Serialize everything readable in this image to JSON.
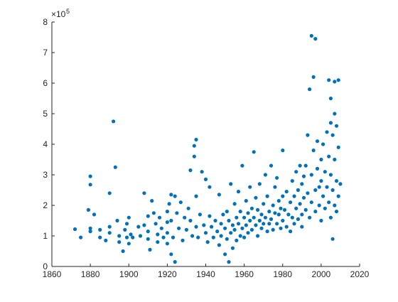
{
  "chart_data": {
    "type": "scatter",
    "title": "",
    "xlabel": "",
    "ylabel": "",
    "xlim": [
      1860,
      2020
    ],
    "ylim": [
      0,
      800000
    ],
    "x_ticks": [
      1860,
      1880,
      1900,
      1920,
      1940,
      1960,
      1980,
      2000,
      2020
    ],
    "y_ticks": [
      0,
      100000,
      200000,
      300000,
      400000,
      500000,
      600000,
      700000,
      800000
    ],
    "y_tick_labels": [
      "0",
      "1",
      "2",
      "3",
      "4",
      "5",
      "6",
      "7",
      "8"
    ],
    "y_exponent_base": "×10",
    "y_exponent_power": "5",
    "grid": false,
    "legend": "none",
    "marker_color": "#0072BD",
    "series": [
      {
        "points": [
          [
            1872,
            122000
          ],
          [
            1875,
            95000
          ],
          [
            1879,
            185000
          ],
          [
            1880,
            295000
          ],
          [
            1880,
            268000
          ],
          [
            1880,
            125000
          ],
          [
            1880,
            115000
          ],
          [
            1882,
            170000
          ],
          [
            1885,
            120000
          ],
          [
            1885,
            95000
          ],
          [
            1888,
            85000
          ],
          [
            1890,
            240000
          ],
          [
            1890,
            130000
          ],
          [
            1890,
            110000
          ],
          [
            1892,
            475000
          ],
          [
            1893,
            325000
          ],
          [
            1894,
            150000
          ],
          [
            1895,
            100000
          ],
          [
            1895,
            80000
          ],
          [
            1897,
            50000
          ],
          [
            1898,
            120000
          ],
          [
            1899,
            140000
          ],
          [
            1899,
            95000
          ],
          [
            1900,
            160000
          ],
          [
            1900,
            75000
          ],
          [
            1901,
            105000
          ],
          [
            1902,
            95000
          ],
          [
            1905,
            130000
          ],
          [
            1906,
            100000
          ],
          [
            1908,
            240000
          ],
          [
            1908,
            135000
          ],
          [
            1910,
            165000
          ],
          [
            1910,
            115000
          ],
          [
            1910,
            90000
          ],
          [
            1911,
            55000
          ],
          [
            1912,
            215000
          ],
          [
            1913,
            175000
          ],
          [
            1914,
            140000
          ],
          [
            1915,
            105000
          ],
          [
            1915,
            80000
          ],
          [
            1916,
            160000
          ],
          [
            1917,
            125000
          ],
          [
            1918,
            95000
          ],
          [
            1920,
            180000
          ],
          [
            1920,
            145000
          ],
          [
            1920,
            110000
          ],
          [
            1920,
            75000
          ],
          [
            1921,
            205000
          ],
          [
            1922,
            235000
          ],
          [
            1922,
            150000
          ],
          [
            1922,
            40000
          ],
          [
            1923,
            95000
          ],
          [
            1924,
            230000
          ],
          [
            1924,
            15000
          ],
          [
            1925,
            175000
          ],
          [
            1926,
            125000
          ],
          [
            1927,
            210000
          ],
          [
            1928,
            85000
          ],
          [
            1929,
            160000
          ],
          [
            1930,
            120000
          ],
          [
            1931,
            190000
          ],
          [
            1932,
            150000
          ],
          [
            1932,
            315000
          ],
          [
            1933,
            100000
          ],
          [
            1934,
            360000
          ],
          [
            1934,
            395000
          ],
          [
            1935,
            415000
          ],
          [
            1935,
            230000
          ],
          [
            1935,
            130000
          ],
          [
            1936,
            95000
          ],
          [
            1937,
            170000
          ],
          [
            1938,
            310000
          ],
          [
            1939,
            135000
          ],
          [
            1940,
            285000
          ],
          [
            1940,
            110000
          ],
          [
            1941,
            80000
          ],
          [
            1942,
            260000
          ],
          [
            1942,
            165000
          ],
          [
            1943,
            130000
          ],
          [
            1944,
            95000
          ],
          [
            1945,
            150000
          ],
          [
            1946,
            115000
          ],
          [
            1947,
            235000
          ],
          [
            1947,
            70000
          ],
          [
            1948,
            140000
          ],
          [
            1948,
            100000
          ],
          [
            1949,
            170000
          ],
          [
            1950,
            125000
          ],
          [
            1950,
            40000
          ],
          [
            1951,
            180000
          ],
          [
            1951,
            90000
          ],
          [
            1952,
            150000
          ],
          [
            1952,
            15000
          ],
          [
            1953,
            110000
          ],
          [
            1953,
            270000
          ],
          [
            1954,
            135000
          ],
          [
            1954,
            60000
          ],
          [
            1955,
            205000
          ],
          [
            1955,
            120000
          ],
          [
            1956,
            160000
          ],
          [
            1956,
            85000
          ],
          [
            1957,
            140000
          ],
          [
            1957,
            245000
          ],
          [
            1958,
            180000
          ],
          [
            1958,
            100000
          ],
          [
            1959,
            125000
          ],
          [
            1959,
            330000
          ],
          [
            1960,
            160000
          ],
          [
            1960,
            95000
          ],
          [
            1961,
            215000
          ],
          [
            1961,
            135000
          ],
          [
            1962,
            175000
          ],
          [
            1962,
            110000
          ],
          [
            1963,
            150000
          ],
          [
            1963,
            260000
          ],
          [
            1964,
            190000
          ],
          [
            1964,
            120000
          ],
          [
            1965,
            375000
          ],
          [
            1965,
            160000
          ],
          [
            1966,
            135000
          ],
          [
            1966,
            225000
          ],
          [
            1967,
            185000
          ],
          [
            1967,
            100000
          ],
          [
            1968,
            150000
          ],
          [
            1968,
            270000
          ],
          [
            1969,
            170000
          ],
          [
            1969,
            125000
          ],
          [
            1970,
            205000
          ],
          [
            1970,
            140000
          ],
          [
            1971,
            300000
          ],
          [
            1971,
            160000
          ],
          [
            1972,
            115000
          ],
          [
            1972,
            230000
          ],
          [
            1973,
            180000
          ],
          [
            1973,
            140000
          ],
          [
            1974,
            330000
          ],
          [
            1974,
            155000
          ],
          [
            1975,
            200000
          ],
          [
            1975,
            120000
          ],
          [
            1976,
            175000
          ],
          [
            1976,
            260000
          ],
          [
            1977,
            140000
          ],
          [
            1977,
            290000
          ],
          [
            1978,
            215000
          ],
          [
            1978,
            170000
          ],
          [
            1979,
            125000
          ],
          [
            1979,
            190000
          ],
          [
            1980,
            380000
          ],
          [
            1980,
            230000
          ],
          [
            1980,
            150000
          ],
          [
            1981,
            185000
          ],
          [
            1982,
            245000
          ],
          [
            1982,
            130000
          ],
          [
            1983,
            170000
          ],
          [
            1984,
            210000
          ],
          [
            1984,
            115000
          ],
          [
            1985,
            280000
          ],
          [
            1985,
            160000
          ],
          [
            1986,
            230000
          ],
          [
            1986,
            140000
          ],
          [
            1987,
            310000
          ],
          [
            1987,
            190000
          ],
          [
            1988,
            250000
          ],
          [
            1988,
            155000
          ],
          [
            1989,
            205000
          ],
          [
            1989,
            330000
          ],
          [
            1990,
            270000
          ],
          [
            1990,
            170000
          ],
          [
            1990,
            130000
          ],
          [
            1991,
            225000
          ],
          [
            1991,
            295000
          ],
          [
            1992,
            185000
          ],
          [
            1992,
            330000
          ],
          [
            1993,
            430000
          ],
          [
            1993,
            240000
          ],
          [
            1994,
            580000
          ],
          [
            1994,
            160000
          ],
          [
            1995,
            755000
          ],
          [
            1995,
            300000
          ],
          [
            1995,
            210000
          ],
          [
            1996,
            620000
          ],
          [
            1996,
            380000
          ],
          [
            1997,
            745000
          ],
          [
            1997,
            250000
          ],
          [
            1997,
            180000
          ],
          [
            1998,
            410000
          ],
          [
            1998,
            320000
          ],
          [
            1999,
            260000
          ],
          [
            1999,
            200000
          ],
          [
            2000,
            350000
          ],
          [
            2000,
            280000
          ],
          [
            2000,
            150000
          ],
          [
            2001,
            400000
          ],
          [
            2001,
            230000
          ],
          [
            2002,
            310000
          ],
          [
            2002,
            190000
          ],
          [
            2003,
            440000
          ],
          [
            2003,
            260000
          ],
          [
            2004,
            610000
          ],
          [
            2004,
            360000
          ],
          [
            2004,
            210000
          ],
          [
            2005,
            550000
          ],
          [
            2005,
            470000
          ],
          [
            2005,
            300000
          ],
          [
            2005,
            160000
          ],
          [
            2006,
            430000
          ],
          [
            2006,
            250000
          ],
          [
            2006,
            90000
          ],
          [
            2007,
            605000
          ],
          [
            2007,
            500000
          ],
          [
            2007,
            350000
          ],
          [
            2007,
            200000
          ],
          [
            2008,
            460000
          ],
          [
            2008,
            280000
          ],
          [
            2008,
            180000
          ],
          [
            2009,
            610000
          ],
          [
            2009,
            390000
          ],
          [
            2009,
            230000
          ],
          [
            2010,
            270000
          ]
        ]
      }
    ]
  }
}
